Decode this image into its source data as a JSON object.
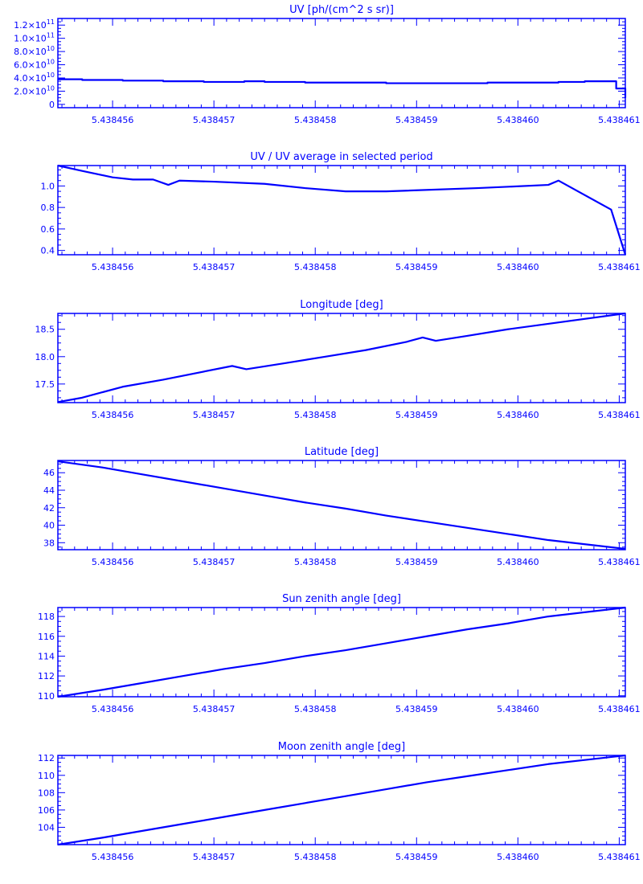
{
  "line_color": "#0000ff",
  "chart_data": [
    {
      "type": "line",
      "title": "UV [ph/(cm^2 s sr)]",
      "xlim": [
        5.43845546,
        5.43846106
      ],
      "ylim": [
        -5000000000.0,
        130000000000.0
      ],
      "xticks": [
        5.438456,
        5.438457,
        5.438458,
        5.438459,
        5.43846,
        5.438461
      ],
      "xtick_labels": [
        "5.438456",
        "5.438457",
        "5.438458",
        "5.438459",
        "5.438460",
        "5.438461"
      ],
      "yticks": [
        0,
        20000000000.0,
        40000000000.0,
        60000000000.0,
        80000000000.0,
        100000000000.0,
        120000000000.0
      ],
      "ytick_labels": [
        {
          "base": "0",
          "exp": ""
        },
        {
          "base": "2.0×10",
          "exp": "10"
        },
        {
          "base": "4.0×10",
          "exp": "10"
        },
        {
          "base": "6.0×10",
          "exp": "10"
        },
        {
          "base": "8.0×10",
          "exp": "10"
        },
        {
          "base": "1.0×10",
          "exp": "11"
        },
        {
          "base": "1.2×10",
          "exp": "11"
        }
      ],
      "step": true,
      "x": [
        5.43845546,
        5.4384557,
        5.4384561,
        5.4384565,
        5.4384569,
        5.4384573,
        5.4384575,
        5.4384579,
        5.4384587,
        5.4384597,
        5.4384604,
        5.43846066,
        5.43846097,
        5.43846106
      ],
      "y": [
        38000000000.0,
        37000000000.0,
        36000000000.0,
        35000000000.0,
        34000000000.0,
        35000000000.0,
        34000000000.0,
        33000000000.0,
        32000000000.0,
        33000000000.0,
        34000000000.0,
        35000000000.0,
        24000000000.0,
        10000000000.0
      ]
    },
    {
      "type": "line",
      "title": "UV / UV average in selected period",
      "xlim": [
        5.43845546,
        5.43846106
      ],
      "ylim": [
        0.36,
        1.19
      ],
      "xticks": [
        5.438456,
        5.438457,
        5.438458,
        5.438459,
        5.43846,
        5.438461
      ],
      "xtick_labels": [
        "5.438456",
        "5.438457",
        "5.438458",
        "5.438459",
        "5.438460",
        "5.438461"
      ],
      "yticks": [
        0.4,
        0.6,
        0.8,
        1.0
      ],
      "ytick_labels": [
        {
          "base": "0.4",
          "exp": ""
        },
        {
          "base": "0.6",
          "exp": ""
        },
        {
          "base": "0.8",
          "exp": ""
        },
        {
          "base": "1.0",
          "exp": ""
        }
      ],
      "x": [
        5.43845546,
        5.4384557,
        5.438456,
        5.4384562,
        5.4384564,
        5.43845655,
        5.43845666,
        5.438457,
        5.4384575,
        5.4384579,
        5.4384583,
        5.4384587,
        5.4384596,
        5.4384603,
        5.4384604,
        5.43846092,
        5.43846106
      ],
      "y": [
        1.19,
        1.14,
        1.08,
        1.06,
        1.06,
        1.01,
        1.05,
        1.04,
        1.02,
        0.98,
        0.95,
        0.95,
        0.98,
        1.01,
        1.05,
        0.78,
        0.36
      ]
    },
    {
      "type": "line",
      "title": "Longitude [deg]",
      "xlim": [
        5.43845546,
        5.43846106
      ],
      "ylim": [
        17.16,
        18.79
      ],
      "xticks": [
        5.438456,
        5.438457,
        5.438458,
        5.438459,
        5.43846,
        5.438461
      ],
      "xtick_labels": [
        "5.438456",
        "5.438457",
        "5.438458",
        "5.438459",
        "5.438460",
        "5.438461"
      ],
      "yticks": [
        17.5,
        18.0,
        18.5
      ],
      "ytick_labels": [
        {
          "base": "17.5",
          "exp": ""
        },
        {
          "base": "18.0",
          "exp": ""
        },
        {
          "base": "18.5",
          "exp": ""
        }
      ],
      "x": [
        5.43845546,
        5.4384557,
        5.4384561,
        5.4384565,
        5.43845718,
        5.43845732,
        5.4384577,
        5.4384581,
        5.4384585,
        5.4384589,
        5.43845906,
        5.43845919,
        5.4384595,
        5.4384599,
        5.43846106
      ],
      "y": [
        17.17,
        17.25,
        17.45,
        17.58,
        17.83,
        17.77,
        17.88,
        18.0,
        18.12,
        18.27,
        18.35,
        18.29,
        18.38,
        18.5,
        18.79
      ]
    },
    {
      "type": "line",
      "title": "Latitude [deg]",
      "xlim": [
        5.43845546,
        5.43846106
      ],
      "ylim": [
        37.2,
        47.4
      ],
      "xticks": [
        5.438456,
        5.438457,
        5.438458,
        5.438459,
        5.43846,
        5.438461
      ],
      "xtick_labels": [
        "5.438456",
        "5.438457",
        "5.438458",
        "5.438459",
        "5.438460",
        "5.438461"
      ],
      "yticks": [
        38,
        40,
        42,
        44,
        46
      ],
      "ytick_labels": [
        {
          "base": "38",
          "exp": ""
        },
        {
          "base": "40",
          "exp": ""
        },
        {
          "base": "42",
          "exp": ""
        },
        {
          "base": "44",
          "exp": ""
        },
        {
          "base": "46",
          "exp": ""
        }
      ],
      "x": [
        5.43845546,
        5.4384559,
        5.4384563,
        5.4384567,
        5.4384571,
        5.4384575,
        5.4384579,
        5.4384583,
        5.4384587,
        5.4384591,
        5.4384595,
        5.4384599,
        5.4384603,
        5.43846106
      ],
      "y": [
        47.3,
        46.6,
        45.8,
        45.0,
        44.2,
        43.4,
        42.6,
        41.9,
        41.1,
        40.4,
        39.7,
        39.0,
        38.3,
        37.3
      ]
    },
    {
      "type": "line",
      "title": "Sun zenith angle [deg]",
      "xlim": [
        5.43845546,
        5.43846106
      ],
      "ylim": [
        109.9,
        118.9
      ],
      "xticks": [
        5.438456,
        5.438457,
        5.438458,
        5.438459,
        5.43846,
        5.438461
      ],
      "xtick_labels": [
        "5.438456",
        "5.438457",
        "5.438458",
        "5.438459",
        "5.438460",
        "5.438461"
      ],
      "yticks": [
        110,
        112,
        114,
        116,
        118
      ],
      "ytick_labels": [
        {
          "base": "110",
          "exp": ""
        },
        {
          "base": "112",
          "exp": ""
        },
        {
          "base": "114",
          "exp": ""
        },
        {
          "base": "116",
          "exp": ""
        },
        {
          "base": "118",
          "exp": ""
        }
      ],
      "x": [
        5.43845546,
        5.4384559,
        5.4384563,
        5.4384567,
        5.4384571,
        5.4384575,
        5.4384579,
        5.4384583,
        5.4384587,
        5.4384591,
        5.4384595,
        5.4384599,
        5.4384603,
        5.43846106
      ],
      "y": [
        109.9,
        110.6,
        111.3,
        112.0,
        112.7,
        113.3,
        114.0,
        114.6,
        115.3,
        116.0,
        116.7,
        117.3,
        118.0,
        118.9
      ]
    },
    {
      "type": "line",
      "title": "Moon zenith angle [deg]",
      "xlim": [
        5.43845546,
        5.43846106
      ],
      "ylim": [
        102.0,
        112.3
      ],
      "xticks": [
        5.438456,
        5.438457,
        5.438458,
        5.438459,
        5.43846,
        5.438461
      ],
      "xtick_labels": [
        "5.438456",
        "5.438457",
        "5.438458",
        "5.438459",
        "5.438460",
        "5.438461"
      ],
      "yticks": [
        104,
        106,
        108,
        110,
        112
      ],
      "ytick_labels": [
        {
          "base": "104",
          "exp": ""
        },
        {
          "base": "106",
          "exp": ""
        },
        {
          "base": "108",
          "exp": ""
        },
        {
          "base": "110",
          "exp": ""
        },
        {
          "base": "112",
          "exp": ""
        }
      ],
      "x": [
        5.43845546,
        5.4384559,
        5.4384563,
        5.4384567,
        5.4384571,
        5.4384575,
        5.4384579,
        5.4384583,
        5.4384587,
        5.4384591,
        5.4384595,
        5.4384599,
        5.4384603,
        5.43846106
      ],
      "y": [
        102.0,
        102.8,
        103.6,
        104.4,
        105.2,
        106.0,
        106.8,
        107.6,
        108.4,
        109.2,
        109.9,
        110.6,
        111.3,
        112.3
      ]
    }
  ]
}
